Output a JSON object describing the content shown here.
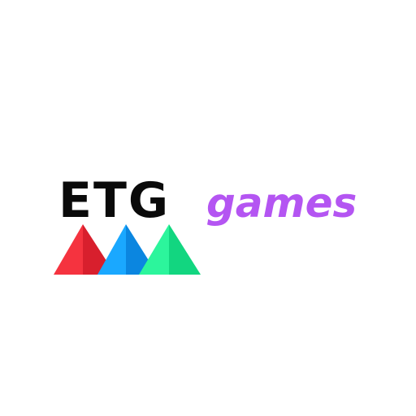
{
  "logo": {
    "wordmark_primary": "ETG",
    "wordmark_secondary": "games",
    "colors": {
      "background": "#ffffff",
      "etg_text": "#0a0a0a",
      "games_text": "#b455f2",
      "triangle_red_light": "#f5333f",
      "triangle_red_dark": "#d81f2d",
      "triangle_blue_light": "#1aa8ff",
      "triangle_blue_dark": "#0b86e0",
      "triangle_green_light": "#2cf59c",
      "triangle_green_dark": "#12d680"
    },
    "triangles": [
      "red-triangle-icon",
      "blue-triangle-icon",
      "green-triangle-icon"
    ]
  }
}
